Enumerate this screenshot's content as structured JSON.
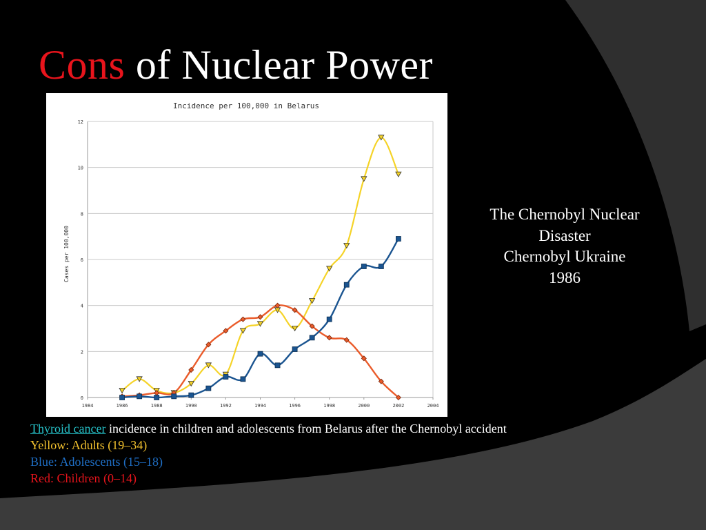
{
  "slide": {
    "title_accent": "Cons",
    "title_rest": " of Nuclear Power"
  },
  "caption": {
    "line1": "The Chernobyl Nuclear",
    "line2": "Disaster",
    "line3": "Chernobyl Ukraine",
    "line4": "1986"
  },
  "notes": {
    "link_text": "Thyroid cancer",
    "line1_rest": " incidence in children and adolescents from Belarus after the Chernobyl accident",
    "yellow": "Yellow: Adults (19–34)",
    "blue": "Blue: Adolescents (15–18)",
    "red": "Red: Children (0–14)"
  },
  "colors": {
    "title_accent": "#e8141c",
    "link": "#26c0c7",
    "yellow_text": "#f2c12e",
    "blue_text": "#1f6fc6",
    "red_text": "#e8141c",
    "series_adults": "#f5d327",
    "series_adolescents": "#1a5490",
    "series_children": "#ea5b2a"
  },
  "chart_data": {
    "type": "line",
    "title": "Incidence per 100,000 in Belarus",
    "xlabel": "",
    "ylabel": "Cases per 100,000",
    "xlim": [
      1984,
      2004
    ],
    "ylim": [
      0,
      12
    ],
    "x_ticks": [
      1984,
      1986,
      1988,
      1990,
      1992,
      1994,
      1996,
      1998,
      2000,
      2002,
      2004
    ],
    "y_ticks": [
      0,
      2,
      4,
      6,
      8,
      10,
      12
    ],
    "grid": "horizontal",
    "x": [
      1986,
      1987,
      1988,
      1989,
      1990,
      1991,
      1992,
      1993,
      1994,
      1995,
      1996,
      1997,
      1998,
      1999,
      2000,
      2001,
      2002
    ],
    "series": [
      {
        "key": "adults",
        "marker": "triangle-down",
        "values": [
          0.3,
          0.8,
          0.3,
          0.2,
          0.6,
          1.4,
          1.0,
          2.9,
          3.2,
          3.8,
          3.0,
          4.2,
          5.6,
          6.6,
          9.5,
          11.3,
          9.7
        ]
      },
      {
        "key": "adolescents",
        "marker": "square",
        "values": [
          0.0,
          0.05,
          0.0,
          0.05,
          0.1,
          0.4,
          0.9,
          0.8,
          1.9,
          1.4,
          2.1,
          2.6,
          3.4,
          4.9,
          5.7,
          5.7,
          6.9
        ]
      },
      {
        "key": "children",
        "marker": "diamond",
        "values": [
          0.05,
          0.1,
          0.2,
          0.2,
          1.2,
          2.3,
          2.9,
          3.4,
          3.5,
          4.0,
          3.8,
          3.1,
          2.6,
          2.5,
          1.7,
          0.7,
          0.0
        ]
      }
    ]
  }
}
